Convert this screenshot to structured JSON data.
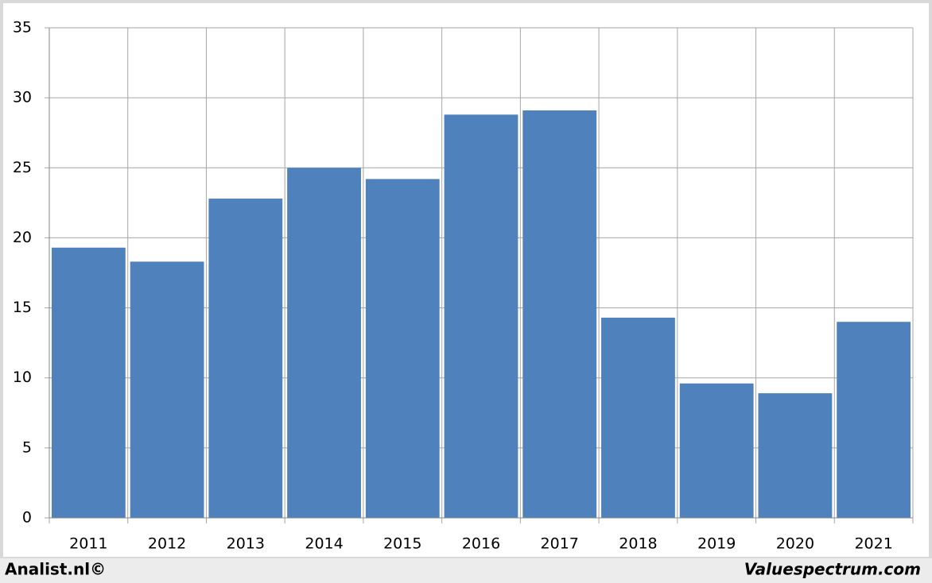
{
  "chart_data": {
    "type": "bar",
    "categories": [
      "2011",
      "2012",
      "2013",
      "2014",
      "2015",
      "2016",
      "2017",
      "2018",
      "2019",
      "2020",
      "2021"
    ],
    "values": [
      19.3,
      18.3,
      22.8,
      25.0,
      24.2,
      28.8,
      29.1,
      14.3,
      9.6,
      8.9,
      14.0
    ],
    "color": "#4f81bd",
    "ylim": [
      0,
      35
    ],
    "yticks": [
      0,
      5,
      10,
      15,
      20,
      25,
      30,
      35
    ],
    "grid": true
  },
  "footer": {
    "left": "Analist.nl©",
    "right": "Valuespectrum.com"
  }
}
